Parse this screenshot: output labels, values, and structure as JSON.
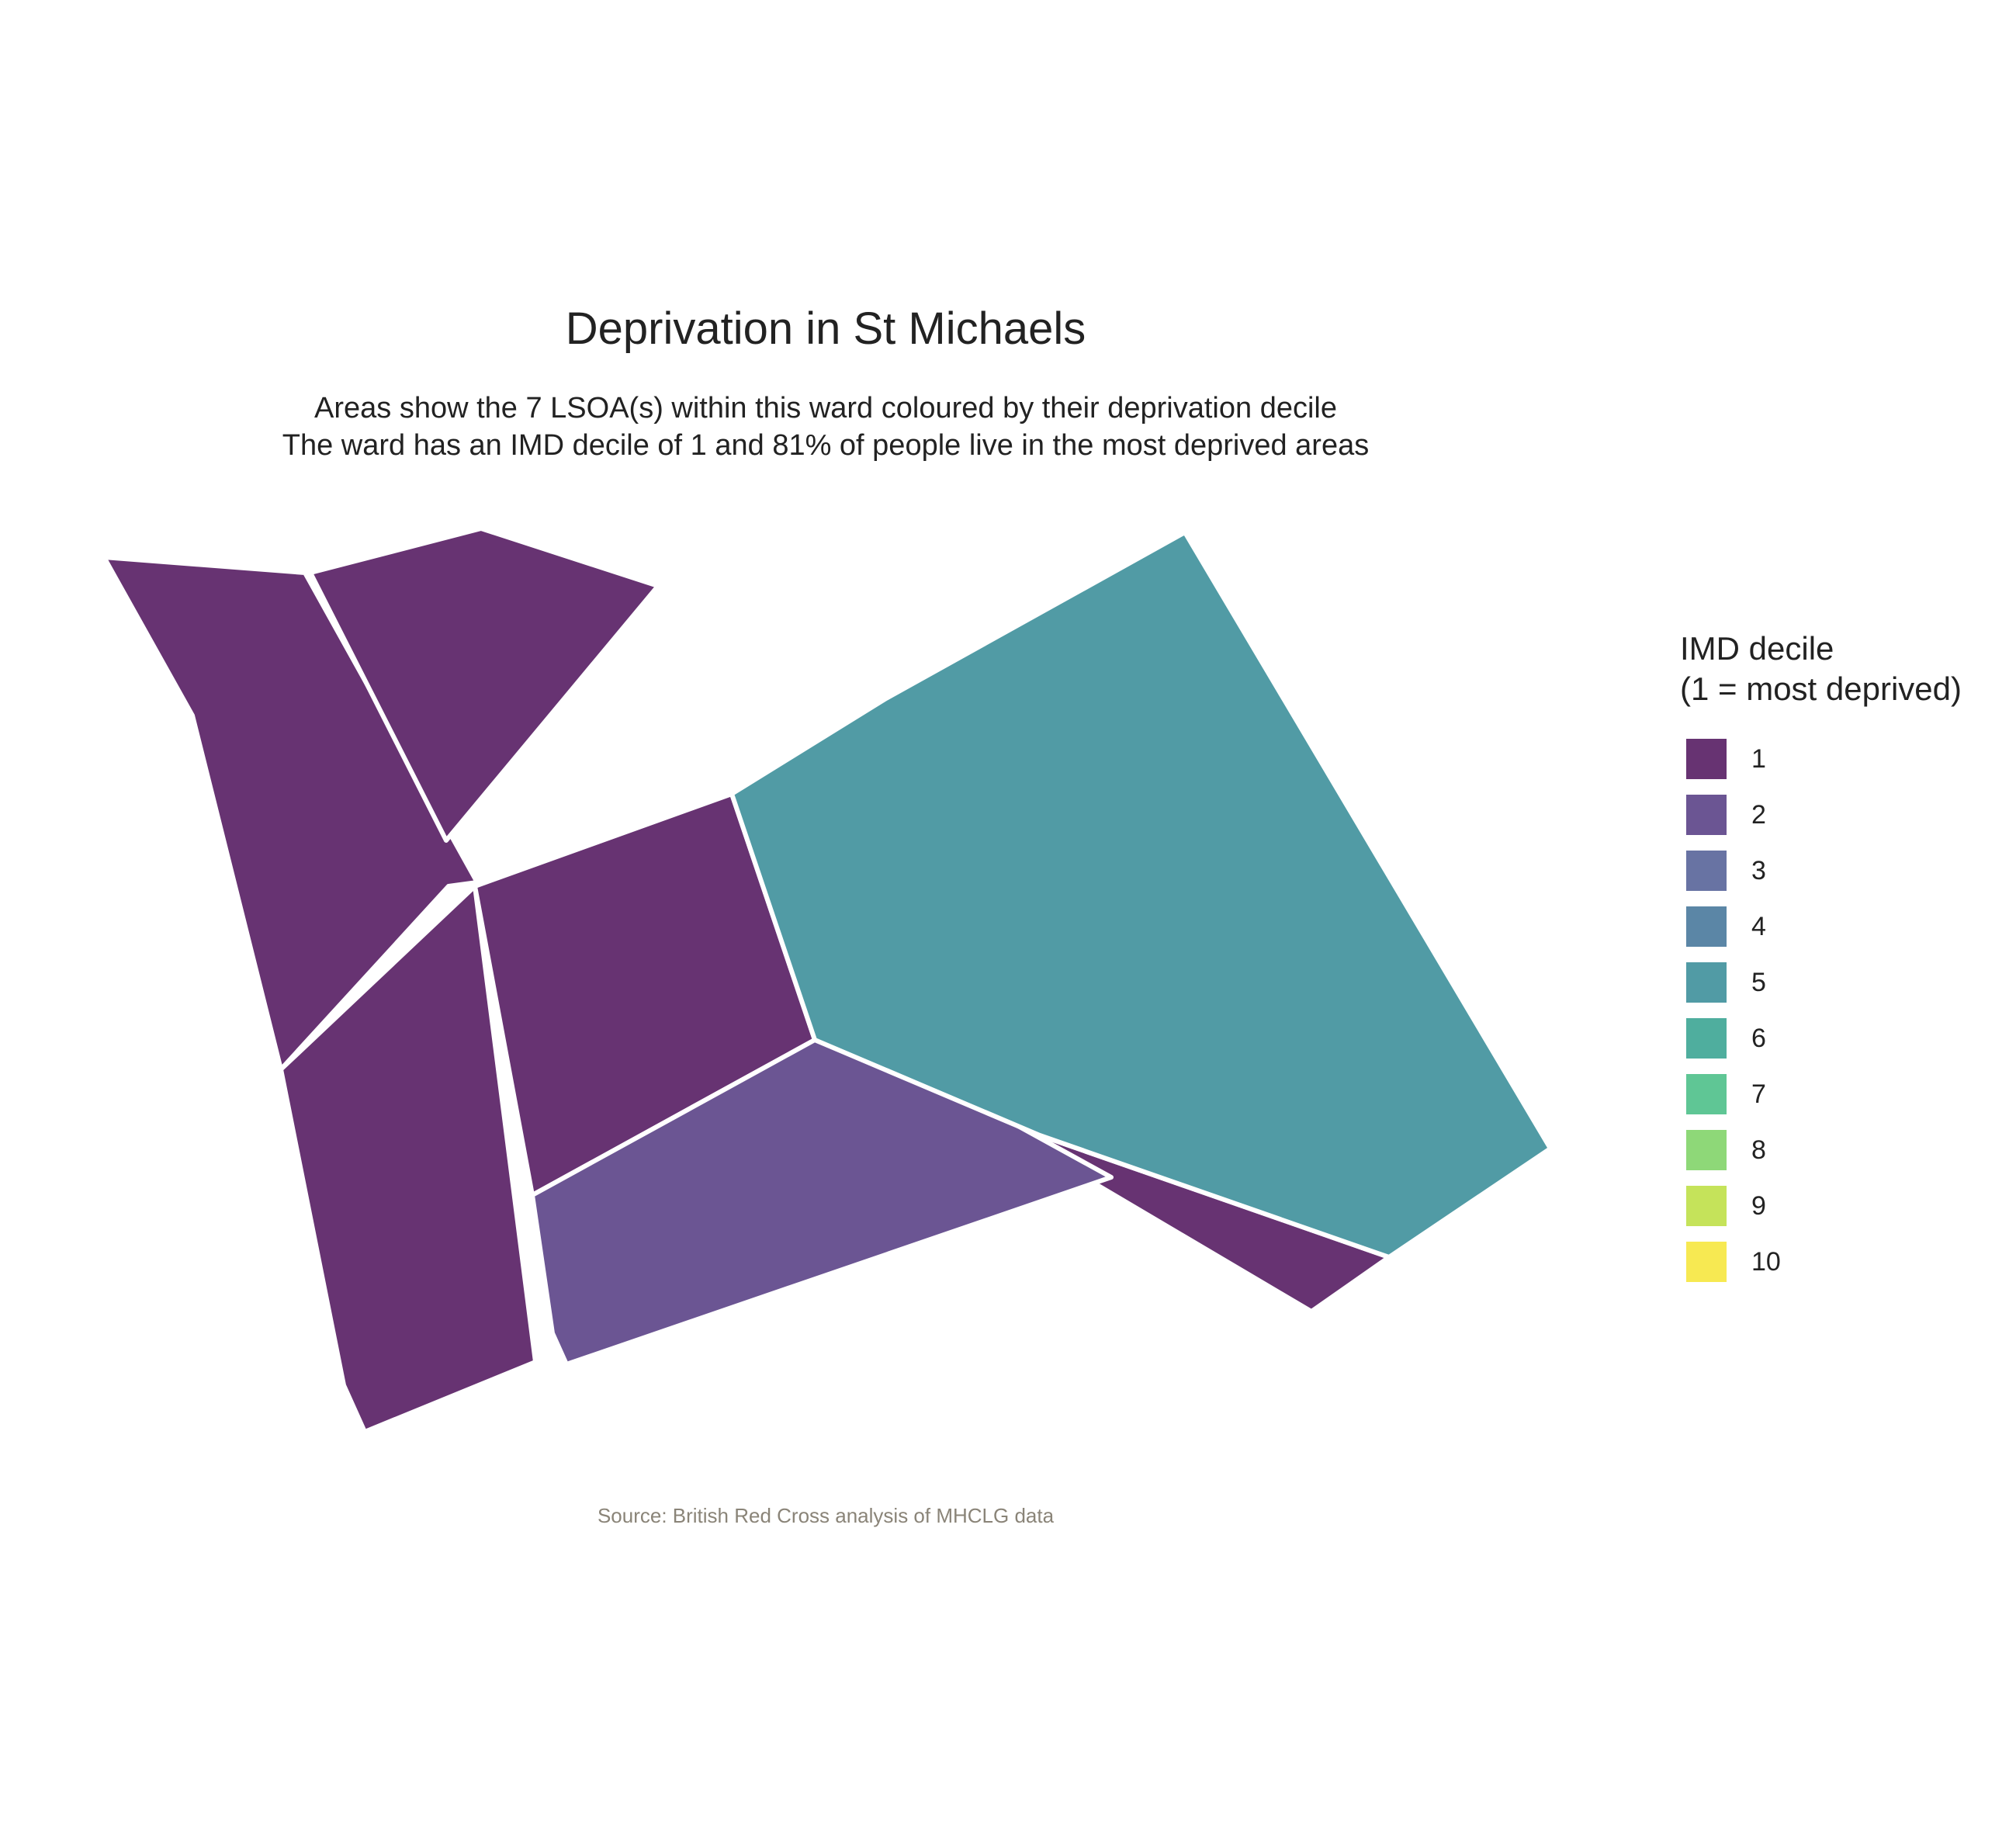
{
  "map": {
    "title": "Deprivation in St Michaels",
    "subtitle_line1": "Areas show the 7 LSOA(s) within this ward coloured by their deprivation decile",
    "subtitle_line2": "The ward has an IMD decile of 1 and 81% of people live in the most deprived areas",
    "caption": "Source: British Red Cross analysis of MHCLG data",
    "areas": [
      {
        "id": "lsoa-1",
        "decile": 1,
        "color": "#673372"
      },
      {
        "id": "lsoa-2",
        "decile": 1,
        "color": "#673372"
      },
      {
        "id": "lsoa-3",
        "decile": 1,
        "color": "#673372"
      },
      {
        "id": "lsoa-4",
        "decile": 1,
        "color": "#673372"
      },
      {
        "id": "lsoa-5",
        "decile": 1,
        "color": "#673372"
      },
      {
        "id": "lsoa-6",
        "decile": 2,
        "color": "#6b5593"
      },
      {
        "id": "lsoa-7",
        "decile": 5,
        "color": "#519ba5"
      }
    ]
  },
  "legend": {
    "title_line1": "IMD decile",
    "title_line2": "(1 = most deprived)",
    "items": [
      {
        "label": "1",
        "color": "#673372"
      },
      {
        "label": "2",
        "color": "#6b5593"
      },
      {
        "label": "3",
        "color": "#6873a3"
      },
      {
        "label": "4",
        "color": "#5b86a6"
      },
      {
        "label": "5",
        "color": "#519ba5"
      },
      {
        "label": "6",
        "color": "#4fae9e"
      },
      {
        "label": "7",
        "color": "#5fc695"
      },
      {
        "label": "8",
        "color": "#8ed878"
      },
      {
        "label": "9",
        "color": "#c5e35a"
      },
      {
        "label": "10",
        "color": "#f7e952"
      }
    ]
  }
}
